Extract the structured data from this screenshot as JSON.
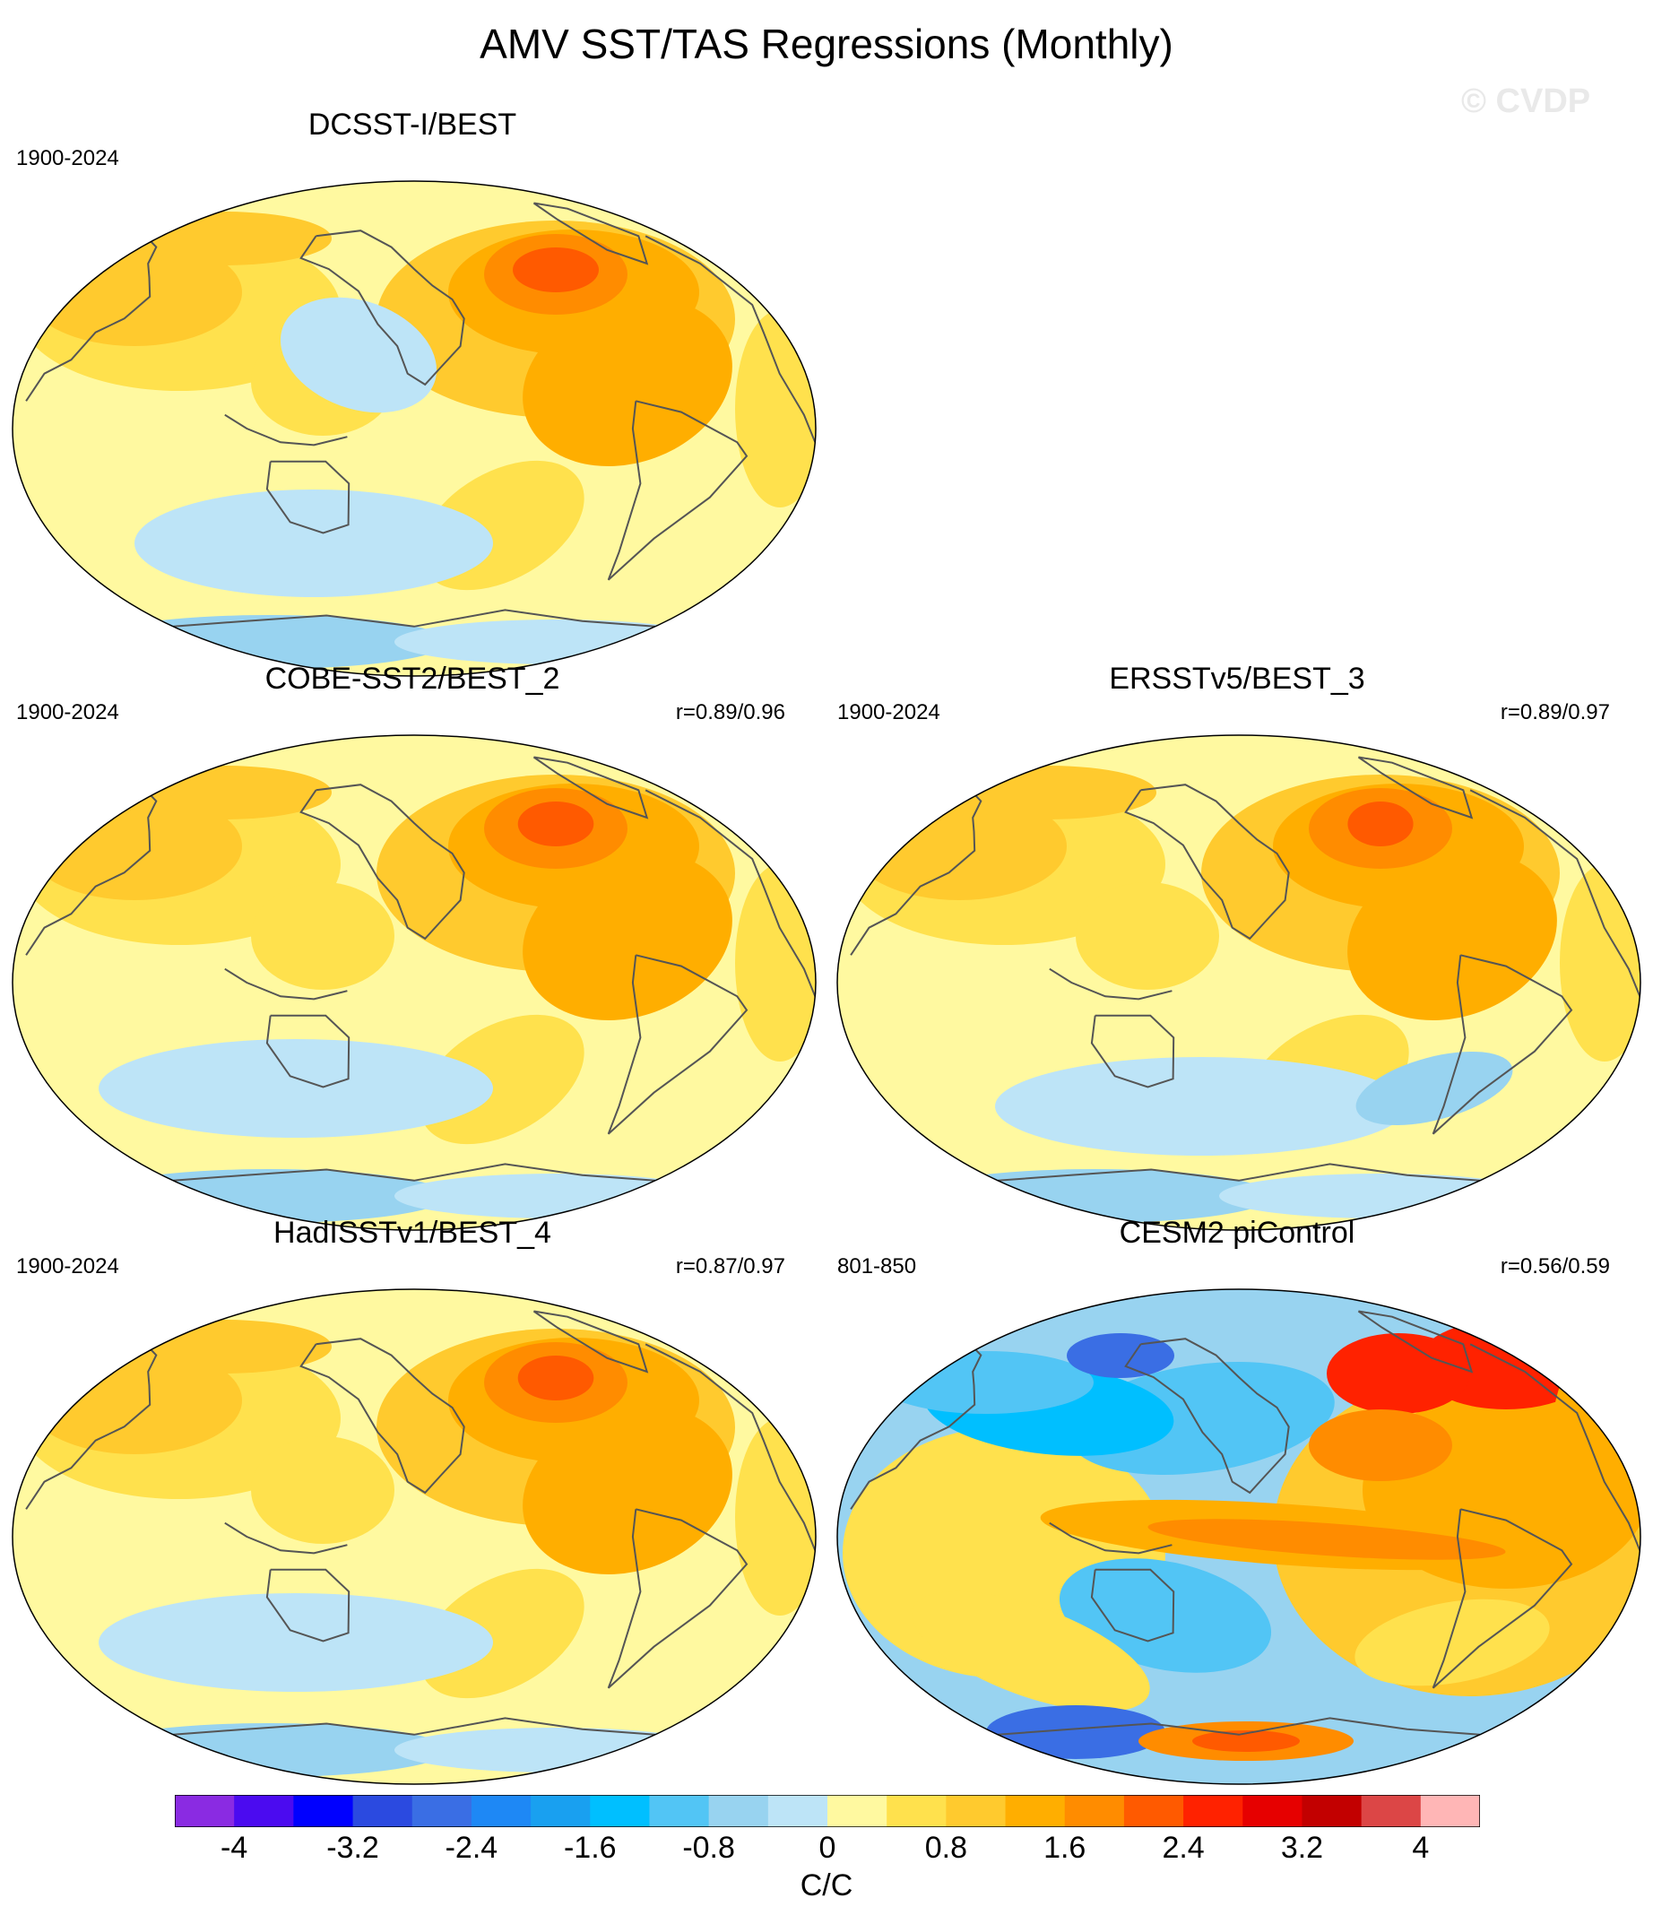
{
  "title": "AMV SST/TAS Regressions (Monthly)",
  "watermark": "© CVDP",
  "panels": [
    {
      "title": "DCSST-I/BEST",
      "period": "1900-2024",
      "corr": "",
      "col": 0,
      "row": 0,
      "pattern": "obs_dcsst"
    },
    {
      "title": "COBE-SST2/BEST_2",
      "period": "1900-2024",
      "corr": "r=0.89/0.96",
      "col": 0,
      "row": 1,
      "pattern": "obs_cobe"
    },
    {
      "title": "ERSSTv5/BEST_3",
      "period": "1900-2024",
      "corr": "r=0.89/0.97",
      "col": 1,
      "row": 1,
      "pattern": "obs_ersst"
    },
    {
      "title": "HadISSTv1/BEST_4",
      "period": "1900-2024",
      "corr": "r=0.87/0.97",
      "col": 0,
      "row": 2,
      "pattern": "obs_hadisst"
    },
    {
      "title": "CESM2 piControl",
      "period": "801-850",
      "corr": "r=0.56/0.59",
      "col": 1,
      "row": 2,
      "pattern": "model_cesm2"
    }
  ],
  "colorbar": {
    "colors": [
      "#8a2be2",
      "#4b0bf0",
      "#0000ff",
      "#2b4ae0",
      "#3a6ee4",
      "#1e88f5",
      "#19a0f0",
      "#00bfff",
      "#52c5f5",
      "#98d3f0",
      "#bde4f7",
      "#fff9a0",
      "#ffe14d",
      "#ffca2e",
      "#ffae00",
      "#ff8c00",
      "#ff5a00",
      "#ff2200",
      "#e60000",
      "#c20000",
      "#dc4646",
      "#ffb6b6"
    ],
    "tick_labels": [
      "-4",
      "-3.2",
      "-2.4",
      "-1.6",
      "-0.8",
      "0",
      "0.8",
      "1.6",
      "2.4",
      "3.2",
      "4"
    ],
    "units": "C/C"
  }
}
